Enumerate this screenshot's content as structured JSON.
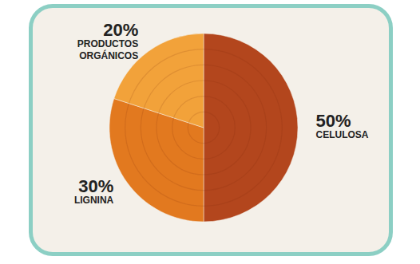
{
  "chart_data": {
    "type": "pie",
    "categories": [
      "CELULOSA",
      "LIGNINA",
      "PRODUCTOS ORGÁNICOS"
    ],
    "values": [
      50,
      30,
      20
    ],
    "value_labels": [
      "50%",
      "30%",
      "20%"
    ],
    "colors": [
      "#b3461d",
      "#e2791f",
      "#f2a23a"
    ],
    "data_labels": true
  }
}
